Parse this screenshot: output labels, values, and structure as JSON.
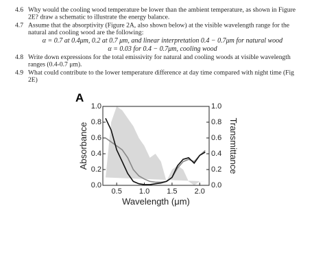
{
  "questions": [
    {
      "number": "4.6",
      "lines": [
        "Why would the cooling wood temperature be lower than the ambient temperature, as shown in Figure",
        "2E? draw a schematic to illustrate the energy balance."
      ]
    },
    {
      "number": "4.7",
      "lines": [
        "Assume that the absorptivity (Figure 2A, also shown below) at the visible wavelength range for the",
        "natural and cooling wood are the following:"
      ],
      "equations": [
        "α = 0.7 at 0.4μm, 0.2 at 0.7 μm, and linear interpretation 0.4 − 0.7μm for natural wood",
        "α = 0.03 for 0.4 − 0.7μm, cooling wood"
      ]
    },
    {
      "number": "4.8",
      "lines": [
        "Write down expressions for the total emissivity for natural and cooling woods at visible wavelength",
        "ranges (0.4-0.7 μm)."
      ]
    },
    {
      "number": "4.9",
      "lines": [
        "What could contribute to the lower temperature difference at day time compared with night time (Fig",
        "2E)"
      ]
    }
  ],
  "chart_data": {
    "type": "line",
    "panel_label": "A",
    "x_label": "Wavelength (μm)",
    "y_label": "Absorbance",
    "y2_label": "Transmittance",
    "x": [
      0.3,
      0.4,
      0.5,
      0.6,
      0.7,
      0.8,
      0.9,
      1.0,
      1.1,
      1.2,
      1.3,
      1.4,
      1.5,
      1.6,
      1.7,
      1.8,
      1.9,
      2.0,
      2.1
    ],
    "series": [
      {
        "color": "#d9d9d9",
        "axis": "y2",
        "area": true,
        "values": [
          0.1,
          0.8,
          1.0,
          0.95,
          0.85,
          0.75,
          0.6,
          0.5,
          0.35,
          0.4,
          0.3,
          0.05,
          0.2,
          0.25,
          0.2,
          0.05,
          0.0,
          0.05,
          0.05
        ]
      },
      {
        "color": "#888888",
        "values": [
          0.6,
          0.55,
          0.5,
          0.45,
          0.35,
          0.2,
          0.12,
          0.08,
          0.05,
          0.04,
          0.04,
          0.05,
          0.1,
          0.22,
          0.3,
          0.33,
          0.3,
          0.38,
          0.44
        ]
      },
      {
        "color": "#111111",
        "values": [
          0.85,
          0.7,
          0.45,
          0.3,
          0.15,
          0.05,
          0.02,
          0.01,
          0.01,
          0.02,
          0.03,
          0.05,
          0.1,
          0.25,
          0.33,
          0.35,
          0.28,
          0.38,
          0.42
        ]
      }
    ],
    "xlim": [
      0.25,
      2.17
    ],
    "xticks": [
      0.5,
      {
        "value": 1,
        "label": "1.0"
      },
      1.5,
      {
        "value": 2,
        "label": "2.0"
      }
    ],
    "ylim": [
      0,
      1
    ],
    "yticks": [
      {
        "value": 0,
        "label": "0.0"
      },
      0.2,
      0.4,
      0.6,
      0.8,
      {
        "value": 1,
        "label": "1.0"
      }
    ],
    "y2lim": [
      0,
      1
    ],
    "y2ticks": [
      {
        "value": 0,
        "label": "0.0"
      },
      0.2,
      0.4,
      0.6,
      0.8,
      {
        "value": 1,
        "label": "1.0"
      }
    ]
  }
}
